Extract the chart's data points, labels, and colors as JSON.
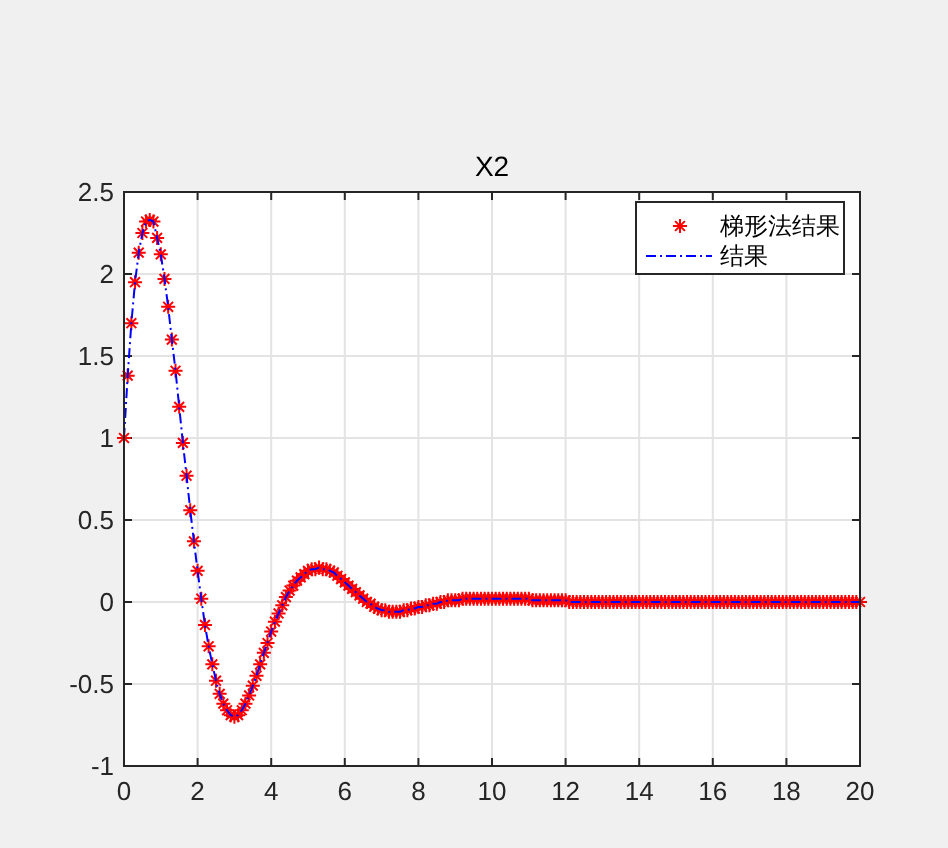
{
  "chart_data": {
    "type": "line",
    "title": "X2",
    "xlim": [
      0,
      20
    ],
    "xticks": [
      0,
      2,
      4,
      6,
      8,
      10,
      12,
      14,
      16,
      18,
      20
    ],
    "ylim": [
      -1,
      2.5
    ],
    "yticks": [
      -1,
      -0.5,
      0,
      0.5,
      1,
      1.5,
      2,
      2.5
    ],
    "grid": true,
    "legend": "top right",
    "x": [
      0,
      0.1,
      0.2,
      0.3,
      0.4,
      0.5,
      0.6,
      0.7,
      0.8,
      0.9,
      1,
      1.1,
      1.2,
      1.3,
      1.4,
      1.5,
      1.6,
      1.7,
      1.8,
      1.9,
      2,
      2.1,
      2.2,
      2.3,
      2.4,
      2.5,
      2.6,
      2.7,
      2.8,
      2.9,
      3,
      3.1,
      3.2,
      3.3,
      3.4,
      3.5,
      3.6,
      3.7,
      3.8,
      3.9,
      4,
      4.1,
      4.2,
      4.3,
      4.4,
      4.5,
      4.6,
      4.7,
      4.8,
      4.9,
      5,
      5.1,
      5.2,
      5.3,
      5.4,
      5.5,
      5.6,
      5.7,
      5.8,
      5.9,
      6,
      6.1,
      6.2,
      6.3,
      6.4,
      6.5,
      6.6,
      6.7,
      6.8,
      6.9,
      7,
      7.1,
      7.2,
      7.3,
      7.4,
      7.5,
      7.6,
      7.7,
      7.8,
      7.9,
      8,
      8.1,
      8.2,
      8.3,
      8.4,
      8.5,
      8.6,
      8.7,
      8.8,
      8.9,
      9,
      9.1,
      9.2,
      9.3,
      9.4,
      9.5,
      9.6,
      9.7,
      9.8,
      9.9,
      10,
      10.1,
      10.2,
      10.3,
      10.4,
      10.5,
      10.6,
      10.7,
      10.8,
      10.9,
      11,
      11.1,
      11.2,
      11.3,
      11.4,
      11.5,
      11.6,
      11.7,
      11.8,
      11.9,
      12,
      12.1,
      12.2,
      12.3,
      12.4,
      12.5,
      12.6,
      12.7,
      12.8,
      12.9,
      13,
      13.1,
      13.2,
      13.3,
      13.4,
      13.5,
      13.6,
      13.7,
      13.8,
      13.9,
      14,
      14.1,
      14.2,
      14.3,
      14.4,
      14.5,
      14.6,
      14.7,
      14.8,
      14.9,
      15,
      15.1,
      15.2,
      15.3,
      15.4,
      15.5,
      15.6,
      15.7,
      15.8,
      15.9,
      16,
      16.1,
      16.2,
      16.3,
      16.4,
      16.5,
      16.6,
      16.7,
      16.8,
      16.9,
      17,
      17.1,
      17.2,
      17.3,
      17.4,
      17.5,
      17.6,
      17.7,
      17.8,
      17.9,
      18,
      18.1,
      18.2,
      18.3,
      18.4,
      18.5,
      18.6,
      18.7,
      18.8,
      18.9,
      19,
      19.1,
      19.2,
      19.3,
      19.4,
      19.5,
      19.6,
      19.7,
      19.8,
      19.9,
      20
    ],
    "series": [
      {
        "name": "梯形法结果",
        "type": "scatter",
        "marker": "cross",
        "color": "#ff0000",
        "values": [
          1.0,
          1.38,
          1.7,
          1.95,
          2.13,
          2.25,
          2.32,
          2.33,
          2.32,
          2.22,
          2.12,
          1.97,
          1.8,
          1.6,
          1.41,
          1.19,
          0.97,
          0.77,
          0.56,
          0.37,
          0.19,
          0.02,
          -0.14,
          -0.27,
          -0.38,
          -0.48,
          -0.56,
          -0.62,
          -0.66,
          -0.69,
          -0.7,
          -0.69,
          -0.66,
          -0.62,
          -0.57,
          -0.51,
          -0.45,
          -0.38,
          -0.31,
          -0.25,
          -0.18,
          -0.12,
          -0.07,
          -0.02,
          0.03,
          0.07,
          0.1,
          0.13,
          0.15,
          0.17,
          0.19,
          0.2,
          0.2,
          0.21,
          0.2,
          0.2,
          0.19,
          0.18,
          0.16,
          0.14,
          0.12,
          0.1,
          0.08,
          0.06,
          0.04,
          0.02,
          0.0,
          -0.01,
          -0.03,
          -0.04,
          -0.05,
          -0.05,
          -0.06,
          -0.06,
          -0.06,
          -0.06,
          -0.05,
          -0.05,
          -0.04,
          -0.04,
          -0.03,
          -0.03,
          -0.02,
          -0.02,
          -0.01,
          -0.01,
          0.0,
          0.0,
          0.01,
          0.01,
          0.01,
          0.01,
          0.02,
          0.02,
          0.02,
          0.02,
          0.02,
          0.02,
          0.02,
          0.02,
          0.02,
          0.02,
          0.02,
          0.02,
          0.02,
          0.02,
          0.02,
          0.02,
          0.02,
          0.02,
          0.02,
          0.01,
          0.01,
          0.01,
          0.01,
          0.01,
          0.01,
          0.01,
          0.01,
          0.01,
          0.01,
          0,
          0,
          0,
          0,
          0,
          0,
          0,
          0,
          0,
          0,
          0,
          0,
          0,
          0,
          0,
          0,
          0,
          0,
          0,
          0,
          0,
          0,
          0,
          0,
          0,
          0,
          0,
          0,
          0,
          0,
          0,
          0,
          0,
          0,
          0,
          0,
          0,
          0,
          0,
          0,
          0,
          0,
          0,
          0,
          0,
          0,
          0,
          0,
          0,
          0,
          0,
          0,
          0,
          0,
          0,
          0,
          0,
          0,
          0,
          0,
          0,
          0,
          0,
          0,
          0,
          0,
          0,
          0,
          0,
          0,
          0,
          0,
          0,
          0,
          0,
          0,
          0,
          0,
          0,
          0
        ]
      },
      {
        "name": "结果",
        "type": "line",
        "line_style": "dashed",
        "color": "#0000ff",
        "values": [
          1.0,
          1.38,
          1.7,
          1.95,
          2.13,
          2.25,
          2.32,
          2.33,
          2.32,
          2.22,
          2.12,
          1.97,
          1.8,
          1.6,
          1.41,
          1.19,
          0.97,
          0.77,
          0.56,
          0.37,
          0.19,
          0.02,
          -0.14,
          -0.27,
          -0.38,
          -0.48,
          -0.56,
          -0.62,
          -0.66,
          -0.69,
          -0.7,
          -0.69,
          -0.66,
          -0.62,
          -0.57,
          -0.51,
          -0.45,
          -0.38,
          -0.31,
          -0.25,
          -0.18,
          -0.12,
          -0.07,
          -0.02,
          0.03,
          0.07,
          0.1,
          0.13,
          0.15,
          0.17,
          0.19,
          0.2,
          0.2,
          0.21,
          0.2,
          0.2,
          0.19,
          0.18,
          0.16,
          0.14,
          0.12,
          0.1,
          0.08,
          0.06,
          0.04,
          0.02,
          0.0,
          -0.01,
          -0.03,
          -0.04,
          -0.05,
          -0.05,
          -0.06,
          -0.06,
          -0.06,
          -0.06,
          -0.05,
          -0.05,
          -0.04,
          -0.04,
          -0.03,
          -0.03,
          -0.02,
          -0.02,
          -0.01,
          -0.01,
          0.0,
          0.0,
          0.01,
          0.01,
          0.01,
          0.01,
          0.02,
          0.02,
          0.02,
          0.02,
          0.02,
          0.02,
          0.02,
          0.02,
          0.02,
          0.02,
          0.02,
          0.02,
          0.02,
          0.02,
          0.02,
          0.02,
          0.02,
          0.02,
          0.02,
          0.01,
          0.01,
          0.01,
          0.01,
          0.01,
          0.01,
          0.01,
          0.01,
          0.01,
          0.01,
          0,
          0,
          0,
          0,
          0,
          0,
          0,
          0,
          0,
          0,
          0,
          0,
          0,
          0,
          0,
          0,
          0,
          0,
          0,
          0,
          0,
          0,
          0,
          0,
          0,
          0,
          0,
          0,
          0,
          0,
          0,
          0,
          0,
          0,
          0,
          0,
          0,
          0,
          0,
          0,
          0,
          0,
          0,
          0,
          0,
          0,
          0,
          0,
          0,
          0,
          0,
          0,
          0,
          0,
          0,
          0,
          0,
          0,
          0,
          0,
          0,
          0,
          0,
          0,
          0,
          0,
          0,
          0,
          0,
          0,
          0,
          0,
          0,
          0,
          0,
          0,
          0,
          0,
          0,
          0
        ]
      }
    ]
  }
}
